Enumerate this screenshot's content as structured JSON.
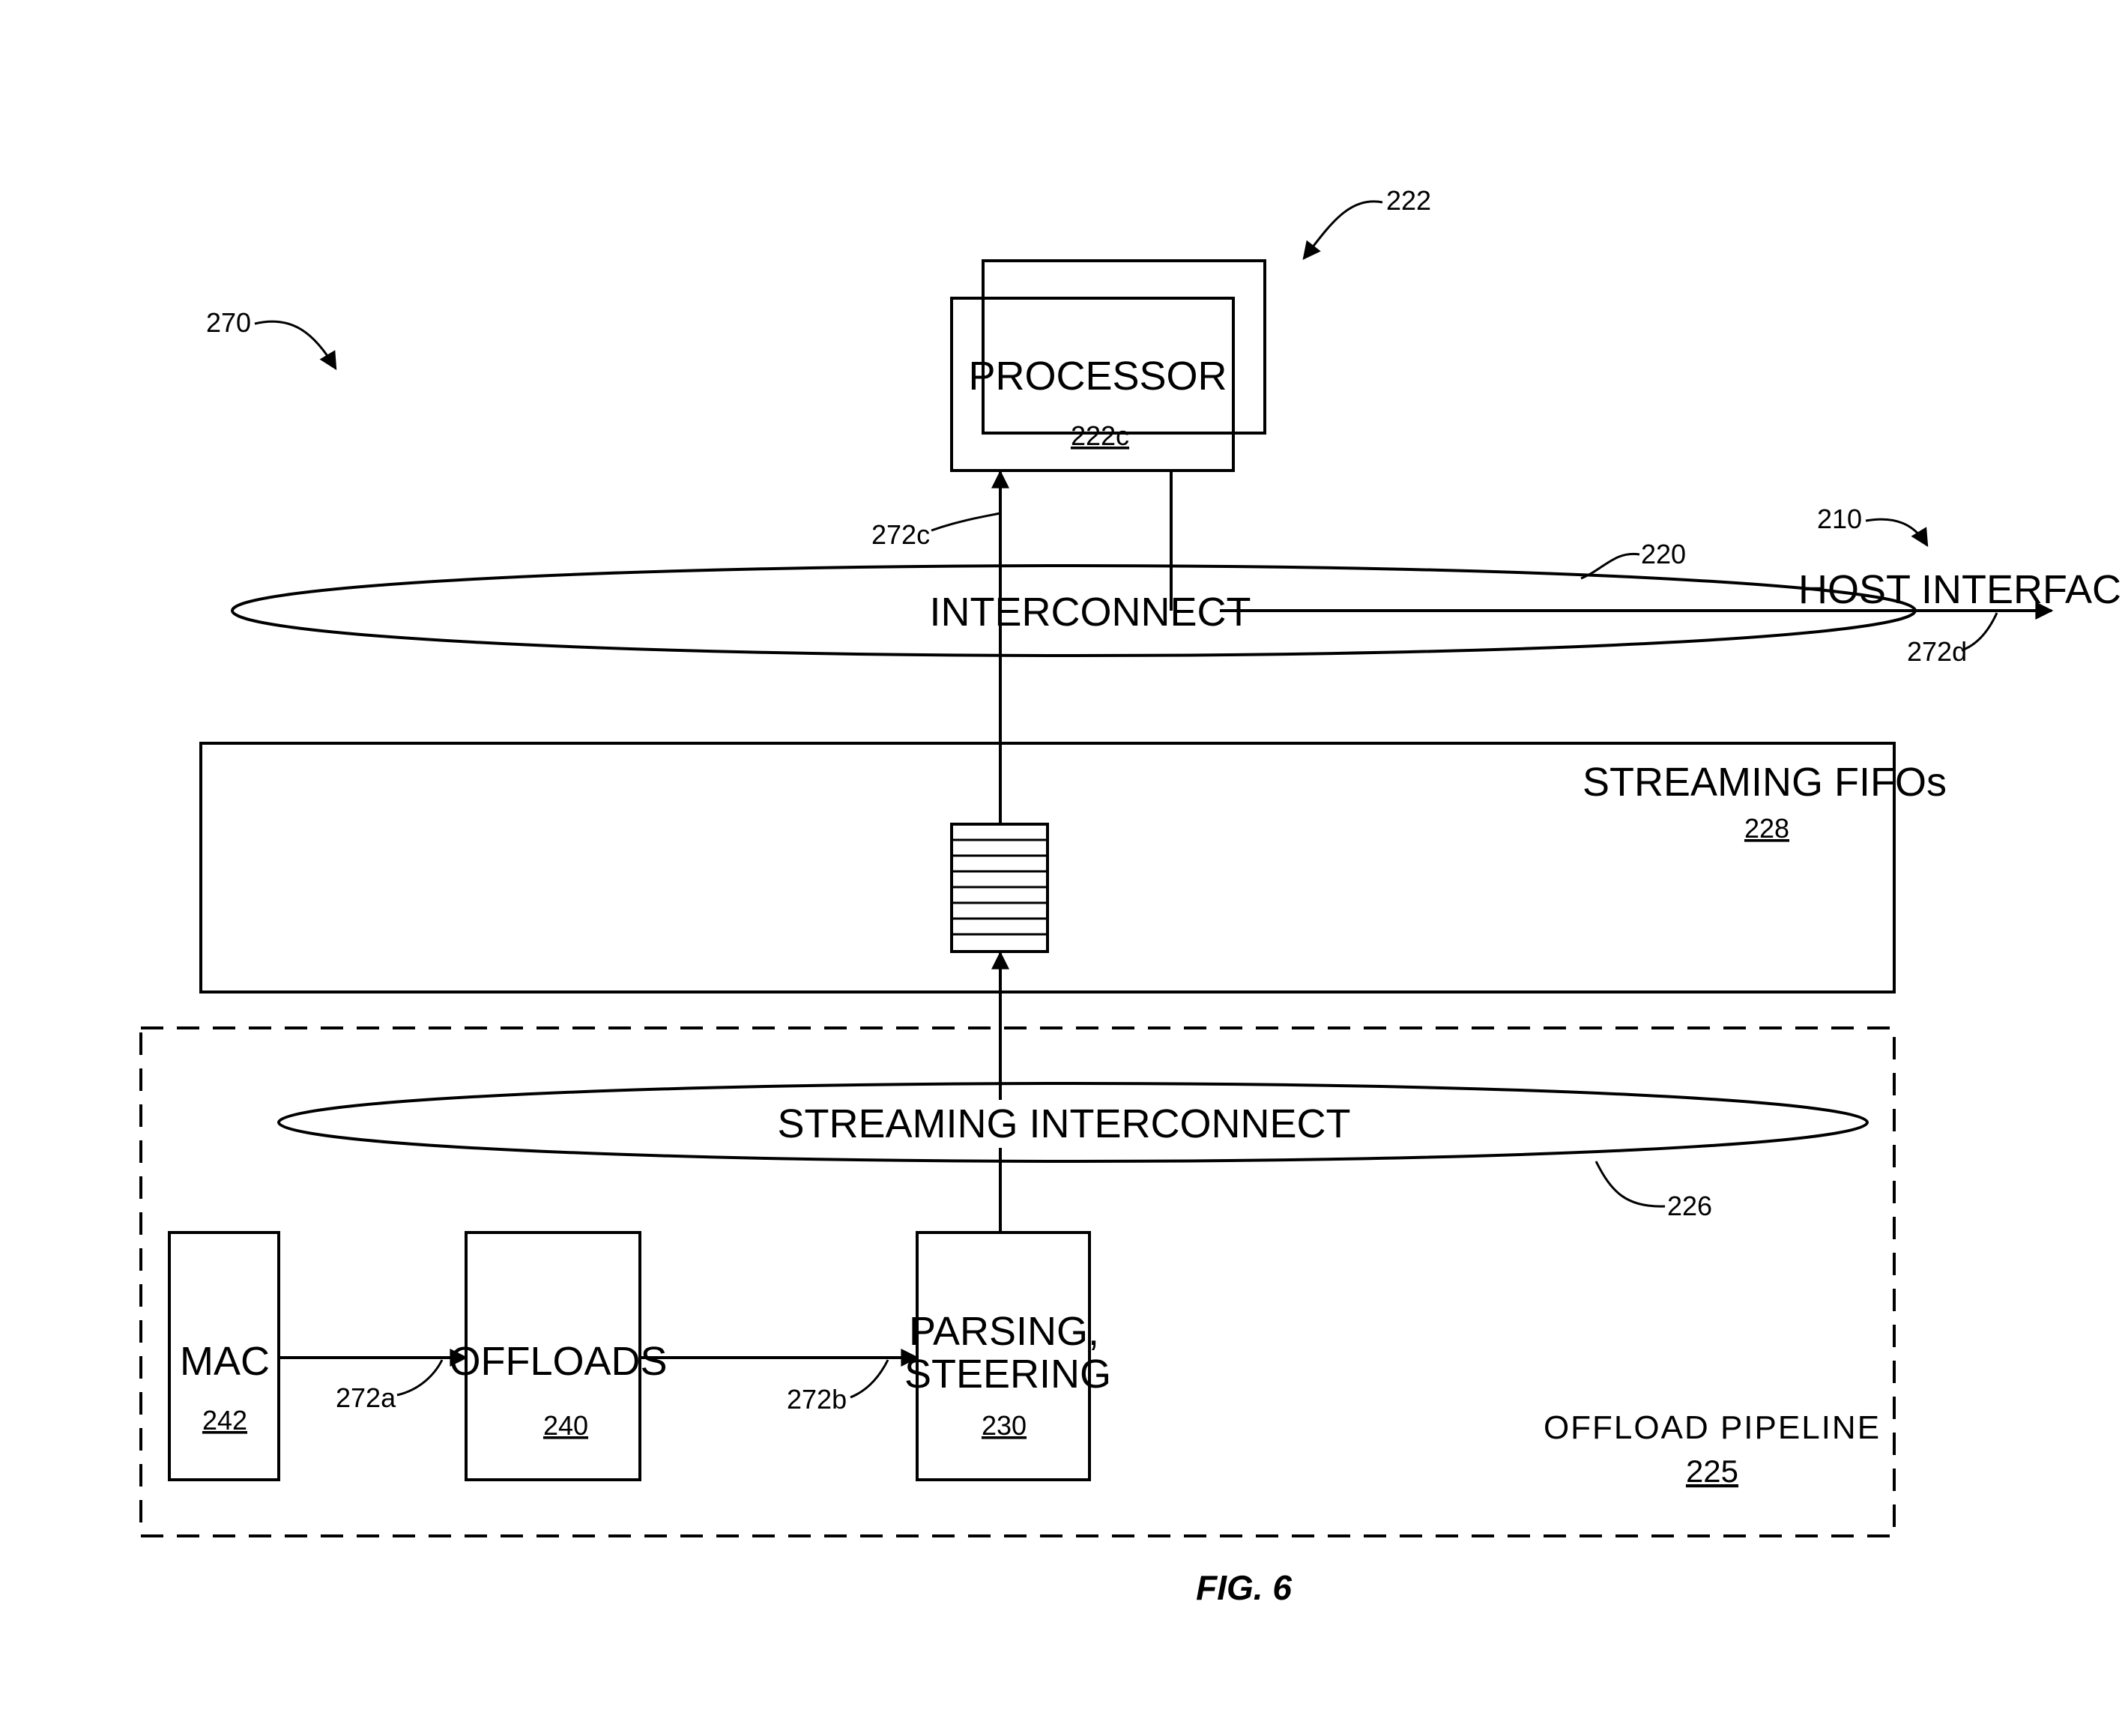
{
  "figure": {
    "caption": "FIG. 6"
  },
  "refs": {
    "r270": "270",
    "r222": "222",
    "r210": "210",
    "r220": "220",
    "r226": "226",
    "r272a": "272a",
    "r272b": "272b",
    "r272c": "272c",
    "r272d": "272d"
  },
  "processor": {
    "label": "PROCESSOR",
    "number": "222c"
  },
  "interconnect": {
    "label": "INTERCONNECT"
  },
  "host_interface": {
    "label": "HOST INTERFACE"
  },
  "streaming_fifos": {
    "label": "STREAMING FIFOs",
    "number": "228"
  },
  "streaming_interconnect": {
    "label": "STREAMING INTERCONNECT"
  },
  "mac": {
    "label": "MAC",
    "number": "242"
  },
  "offloads": {
    "label": "OFFLOADS",
    "number": "240"
  },
  "parsing": {
    "line1": "PARSING,",
    "line2": "STEERING",
    "number": "230"
  },
  "offload_pipeline": {
    "label": "OFFLOAD PIPELINE",
    "number": "225"
  }
}
